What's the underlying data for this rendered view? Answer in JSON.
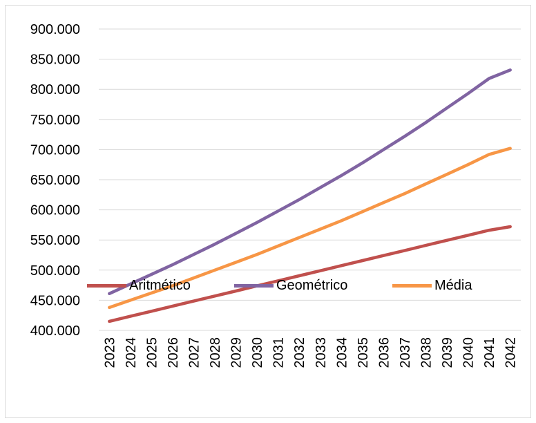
{
  "chart_data": {
    "type": "line",
    "categories": [
      "2023",
      "2024",
      "2025",
      "2026",
      "2027",
      "2028",
      "2029",
      "2030",
      "2031",
      "2032",
      "2033",
      "2034",
      "2035",
      "2036",
      "2037",
      "2038",
      "2039",
      "2040",
      "2041",
      "2042"
    ],
    "ylim": [
      400000,
      900000
    ],
    "yticks": [
      "400.000",
      "450.000",
      "500.000",
      "550.000",
      "600.000",
      "650.000",
      "700.000",
      "750.000",
      "800.000",
      "850.000",
      "900.000"
    ],
    "grid": true,
    "legend_position": "bottom",
    "series": [
      {
        "name": "Aritmético",
        "color": "#c0504d",
        "values": [
          415000,
          423400,
          431800,
          440200,
          448600,
          457000,
          465400,
          473800,
          482200,
          490600,
          499000,
          507400,
          515800,
          524200,
          532600,
          541000,
          549400,
          557800,
          566200,
          572000
        ]
      },
      {
        "name": "Geométrico",
        "color": "#8064a2",
        "values": [
          461000,
          477000,
          493000,
          509000,
          526000,
          543000,
          561000,
          579000,
          598000,
          617000,
          637000,
          657000,
          678000,
          700000,
          722000,
          745000,
          769000,
          793000,
          818000,
          832000
        ]
      },
      {
        "name": "Média",
        "color": "#f79646",
        "values": [
          438000,
          450000,
          462000,
          474000,
          487000,
          500000,
          513000,
          526000,
          540000,
          554000,
          568000,
          582000,
          597000,
          612000,
          627000,
          643000,
          659000,
          675000,
          692000,
          702000
        ]
      }
    ]
  }
}
